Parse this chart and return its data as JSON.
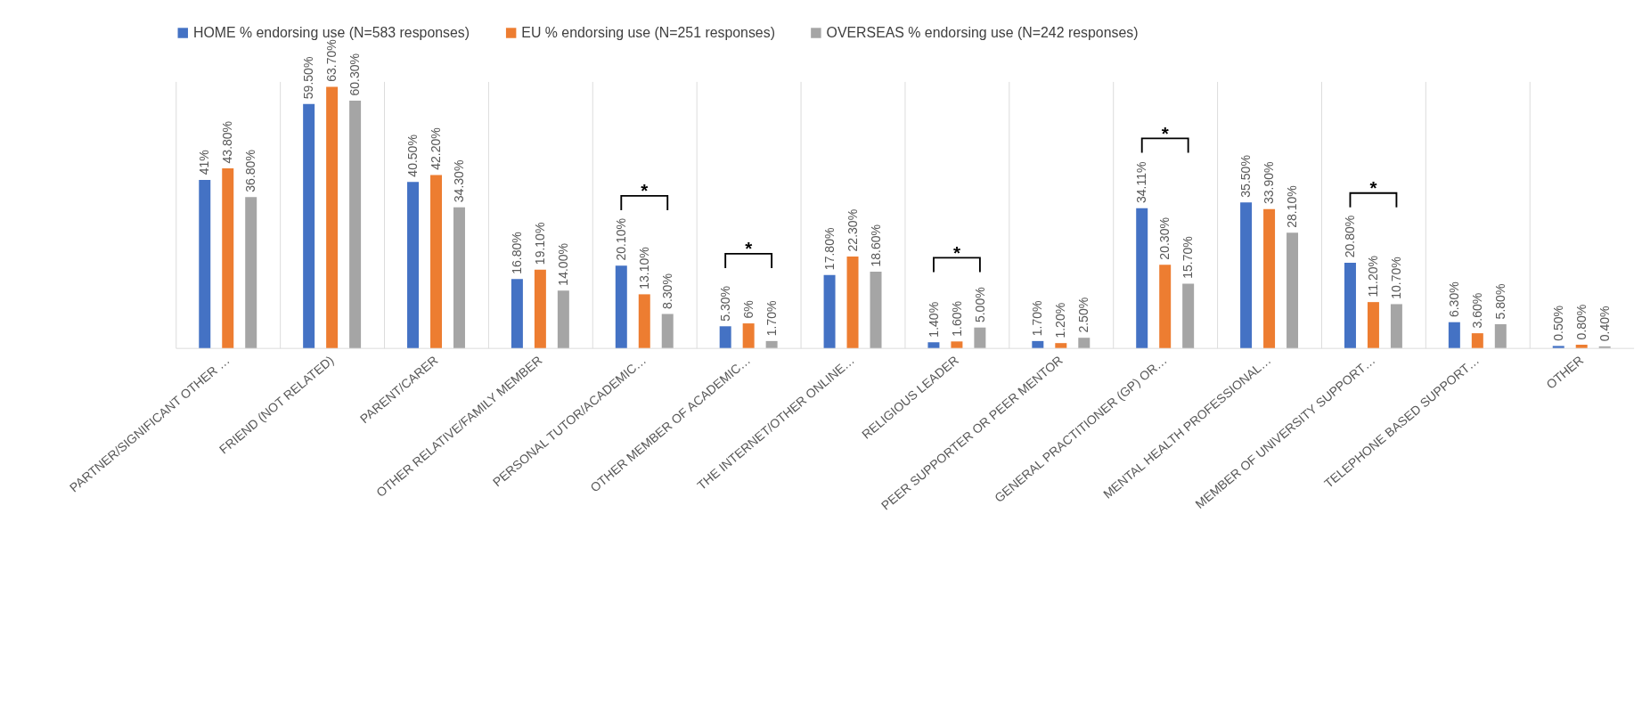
{
  "chart_data": {
    "type": "bar",
    "categories": [
      "PARTNER/SIGNIFICANT OTHER …",
      "FRIEND (NOT RELATED)",
      "PARENT/CARER",
      "OTHER RELATIVE/FAMILY MEMBER",
      "PERSONAL TUTOR/ACADEMIC…",
      "OTHER MEMBER OF ACADEMIC…",
      "THE INTERNET/OTHER ONLINE…",
      "RELIGIOUS LEADER",
      "PEER SUPPORTER OR PEER MENTOR",
      "GENERAL PRACTITIONER (GP) OR…",
      "MENTAL HEALTH PROFESSIONAL…",
      "MEMBER OF UNIVERSITY SUPPORT…",
      "TELEPHONE BASED SUPPORT…",
      "OTHER"
    ],
    "series": [
      {
        "name": "HOME % endorsing use (N=583 responses)",
        "color": "#4472c4",
        "values": [
          41,
          59.5,
          40.5,
          16.8,
          20.1,
          5.3,
          17.8,
          1.4,
          1.7,
          34.11,
          35.5,
          20.8,
          6.3,
          0.5
        ],
        "value_labels": [
          "41%",
          "59.50%",
          "40.50%",
          "16.80%",
          "20.10%",
          "5.30%",
          "17.80%",
          "1.40%",
          "1.70%",
          "34.11%",
          "35.50%",
          "20.80%",
          "6.30%",
          "0.50%"
        ]
      },
      {
        "name": "EU % endorsing use (N=251 responses)",
        "color": "#ed7d31",
        "values": [
          43.8,
          63.7,
          42.2,
          19.1,
          13.1,
          6,
          22.3,
          1.6,
          1.2,
          20.3,
          33.9,
          11.2,
          3.6,
          0.8
        ],
        "value_labels": [
          "43.80%",
          "63.70%",
          "42.20%",
          "19.10%",
          "13.10%",
          "6%",
          "22.30%",
          "1.60%",
          "1.20%",
          "20.30%",
          "33.90%",
          "11.20%",
          "3.60%",
          "0.80%"
        ]
      },
      {
        "name": "OVERSEAS % endorsing use (N=242 responses)",
        "color": "#a5a5a5",
        "values": [
          36.8,
          60.3,
          34.3,
          14,
          8.3,
          1.7,
          18.6,
          5,
          2.5,
          15.7,
          28.1,
          10.7,
          5.8,
          0.4
        ],
        "value_labels": [
          "36.80%",
          "60.30%",
          "34.30%",
          "14.00%",
          "8.30%",
          "1.70%",
          "18.60%",
          "5.00%",
          "2.50%",
          "15.70%",
          "28.10%",
          "10.70%",
          "5.80%",
          "0.40%"
        ]
      }
    ],
    "annotations": [
      "*",
      "*",
      "*",
      "*",
      "*"
    ],
    "legend": "top",
    "grid": "x"
  }
}
